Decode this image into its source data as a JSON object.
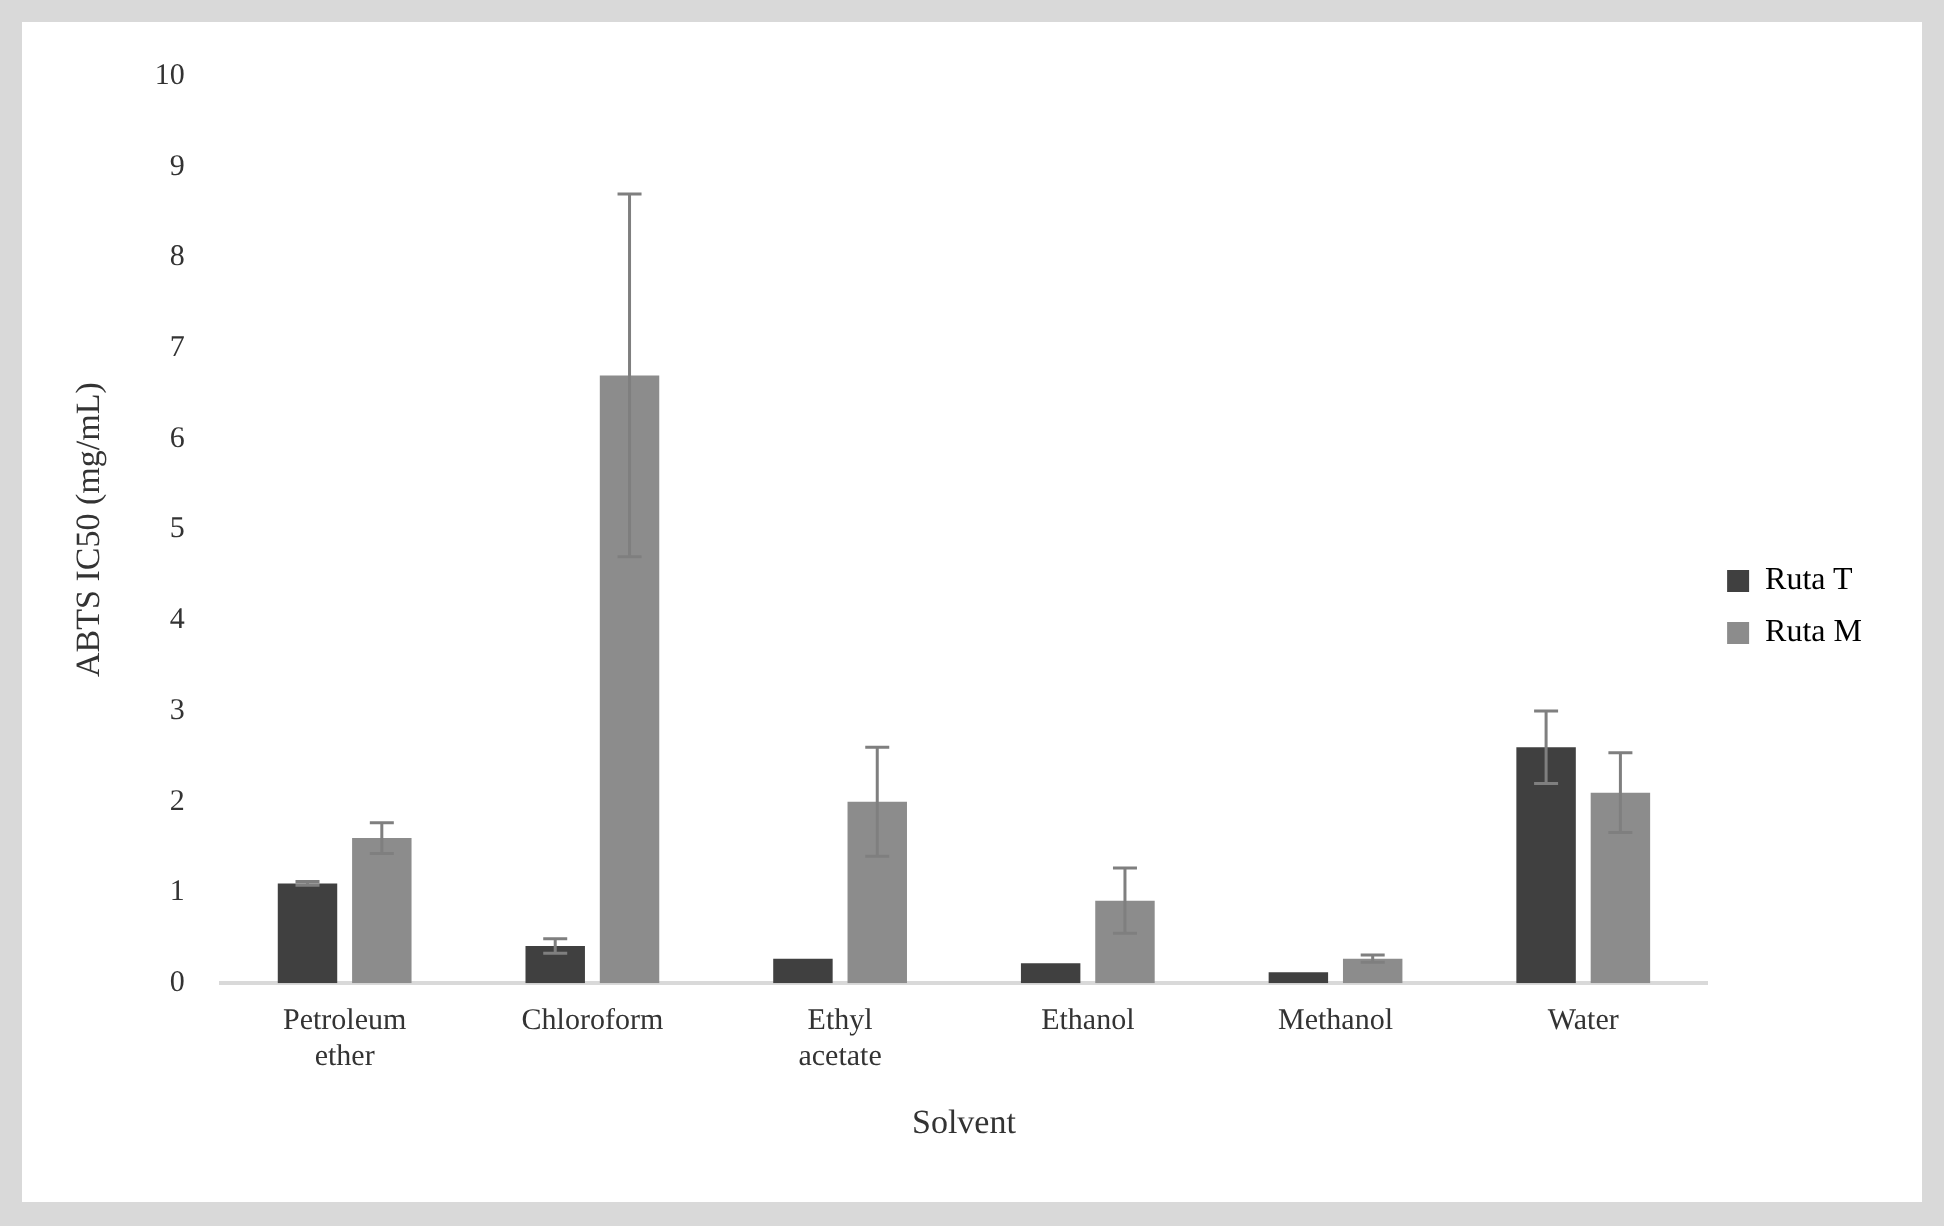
{
  "chart_data": {
    "type": "bar",
    "xlabel": "Solvent",
    "ylabel": "ABTS IC50 (mg/mL)",
    "categories": [
      "Petroleum ether",
      "Chloroform",
      "Ethyl acetate",
      "Ethanol",
      "Methanol",
      "Water"
    ],
    "series": [
      {
        "name": "Ruta T",
        "color": "#404040",
        "values": [
          1.1,
          0.41,
          0.27,
          0.22,
          0.12,
          2.6
        ],
        "errors": [
          0.02,
          0.08,
          null,
          null,
          null,
          0.4
        ]
      },
      {
        "name": "Ruta M",
        "color": "#8c8c8c",
        "values": [
          1.6,
          6.7,
          2.0,
          0.91,
          0.27,
          2.1
        ],
        "errors": [
          0.17,
          2.0,
          0.6,
          0.36,
          0.04,
          0.44
        ]
      }
    ],
    "ylim": [
      0,
      10
    ],
    "yticks": [
      0,
      1,
      2,
      3,
      4,
      5,
      6,
      7,
      8,
      9,
      10
    ],
    "grid": false,
    "legend": "right"
  }
}
